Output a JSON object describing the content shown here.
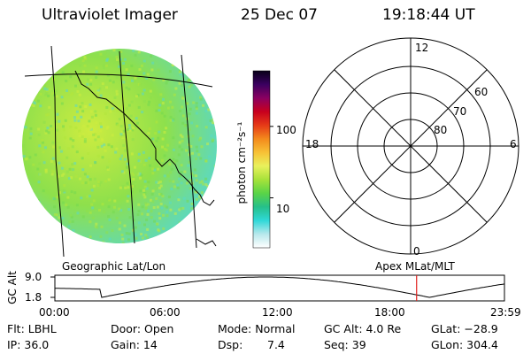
{
  "header": {
    "instrument": "Ultraviolet Imager",
    "date": "25 Dec 07",
    "time": "19:18:44 UT"
  },
  "colorbar": {
    "unit_label": "photon cm⁻²s⁻¹",
    "ticks": [
      {
        "value": 100,
        "label": "100"
      },
      {
        "value": 10,
        "label": "10"
      }
    ],
    "scale": "log",
    "range": [
      2,
      600
    ],
    "colors": [
      "#ffffff",
      "#b8e8ec",
      "#2fd8d8",
      "#26c08a",
      "#5ad447",
      "#a7e23a",
      "#e9f15c",
      "#f7c236",
      "#f38a1c",
      "#e63a17",
      "#c8001e",
      "#8a0061",
      "#3a0060",
      "#080018"
    ]
  },
  "globe_panel": {
    "label": "Geographic Lat/Lon",
    "image_colors": {
      "dominant": "#8ee04c",
      "bright": "#cdec40",
      "edge": "#59d8c8"
    }
  },
  "polar_plot": {
    "label": "Apex MLat/MLT",
    "mlt_labels": {
      "top": "12",
      "bottom": "0",
      "left": "18",
      "right": "6"
    },
    "lat_labels": [
      "60",
      "70",
      "80"
    ]
  },
  "altitude_plot": {
    "ylabel": "GC Alt",
    "yticks": [
      "9.0",
      "1.8"
    ],
    "xticks": [
      "00:00",
      "06:00",
      "12:00",
      "18:00",
      "23:59"
    ],
    "xrange_hours": [
      0,
      24
    ],
    "yrange": [
      1.8,
      9.0
    ],
    "current_time_hours": 19.31,
    "marker_color": "#e0201c"
  },
  "info": {
    "flt": "Flt: LBHL",
    "door": "Door: Open",
    "mode": "Mode: Normal",
    "gc_alt": "GC Alt: 4.0 Re",
    "glat": "GLat: −28.9",
    "ip": "IP: 36.0",
    "gain": "Gain: 14",
    "dsp_label": "Dsp:",
    "dsp_value": "7.4",
    "seq": "Seq: 39",
    "glon": "GLon: 304.4"
  }
}
